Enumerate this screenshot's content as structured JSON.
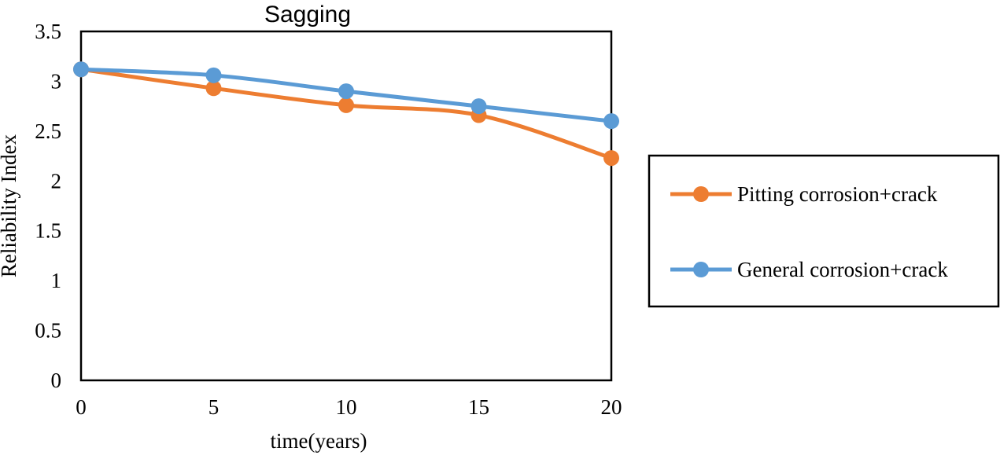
{
  "chart_data": {
    "type": "line",
    "title": "Sagging",
    "xlabel": "time(years)",
    "ylabel": "Reliability Index",
    "x": [
      0,
      5,
      10,
      15,
      20
    ],
    "xlim": [
      0,
      20
    ],
    "ylim": [
      0,
      3.5
    ],
    "x_ticks": [
      "0",
      "5",
      "10",
      "15",
      "20"
    ],
    "y_ticks": [
      "0",
      "0.5",
      "1",
      "1.5",
      "2",
      "2.5",
      "3",
      "3.5"
    ],
    "grid": false,
    "legend_position": "right",
    "series": [
      {
        "name": "Pitting corrosion+crack",
        "color": "#ED7D31",
        "values": [
          3.12,
          2.93,
          2.76,
          2.66,
          2.23
        ]
      },
      {
        "name": "General corrosion+crack",
        "color": "#5B9BD5",
        "values": [
          3.12,
          3.06,
          2.9,
          2.75,
          2.6
        ]
      }
    ]
  }
}
